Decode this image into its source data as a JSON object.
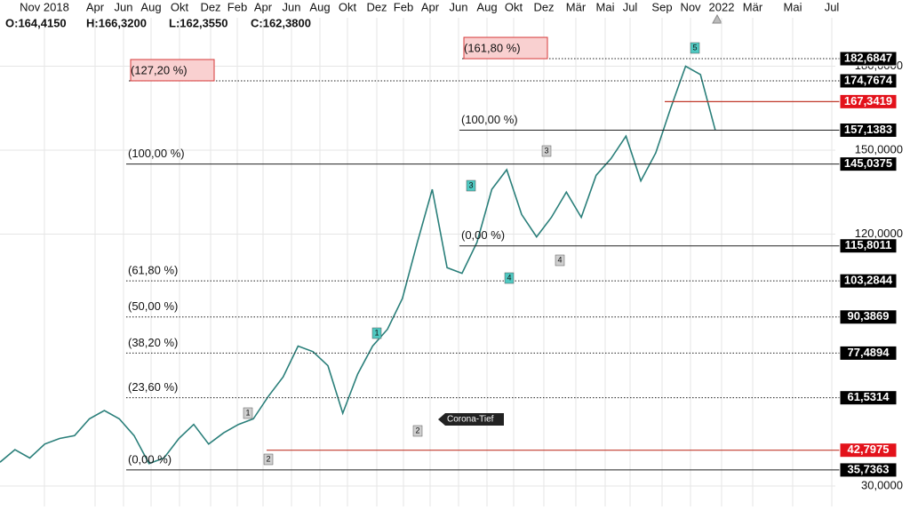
{
  "header": {
    "ohlc": [
      "O:164,4150",
      "H:166,3200",
      "L:162,3550",
      "C:162,3800"
    ]
  },
  "chart_data": {
    "type": "line",
    "x_labels": [
      "Nov 2018",
      "Apr",
      "Jun",
      "Aug",
      "Okt",
      "Dez",
      "Feb",
      "Apr",
      "Jun",
      "Aug",
      "Okt",
      "Dez",
      "Feb",
      "Apr",
      "Jun",
      "Aug",
      "Okt",
      "Dez",
      "Mär",
      "Mai",
      "Jul",
      "Sep",
      "Nov",
      "2022",
      "Mär",
      "Mai",
      "Jul"
    ],
    "series": [
      {
        "color": "#2a7f7a",
        "values": [
          38.5,
          43,
          40,
          45,
          47,
          48,
          54,
          57,
          54,
          48,
          38,
          40,
          47,
          52,
          45,
          49,
          52,
          54,
          62,
          69,
          80,
          78,
          73,
          56,
          70,
          80,
          86,
          97,
          117,
          136,
          108,
          106,
          117,
          136,
          143,
          127,
          119,
          126,
          135,
          126,
          141,
          147,
          155,
          139,
          149,
          165,
          180,
          177,
          157
        ]
      }
    ],
    "ylim": [
      22.7,
      197.3
    ],
    "yticks": [
      {
        "value": 180,
        "label": "180,0000"
      },
      {
        "value": 150,
        "label": "150,0000"
      },
      {
        "value": 120,
        "label": "120,0000"
      },
      {
        "value": 30,
        "label": "30,0000"
      }
    ],
    "grid": true,
    "levels": [
      {
        "value": 182.6847,
        "label": "182,6847",
        "fib": "(161,80 %)",
        "style": "dotted",
        "highlight": true
      },
      {
        "value": 174.7674,
        "label": "174,7674",
        "fib": "(127,20 %)",
        "style": "dotted",
        "highlight": true
      },
      {
        "value": 167.3419,
        "label": "167,3419",
        "style": "red"
      },
      {
        "value": 157.1383,
        "label": "157,1383",
        "fib": "(100,00 %)",
        "style": "solid"
      },
      {
        "value": 145.0375,
        "label": "145,0375",
        "fib": "(100,00 %)",
        "style": "solid"
      },
      {
        "value": 115.8011,
        "label": "115,8011",
        "fib": "(0,00 %)",
        "style": "solid"
      },
      {
        "value": 103.2844,
        "label": "103,2844",
        "fib": "(61,80 %)",
        "style": "dotted"
      },
      {
        "value": 90.3869,
        "label": "90,3869",
        "fib": "(50,00 %)",
        "style": "dotted"
      },
      {
        "value": 77.4894,
        "label": "77,4894",
        "fib": "(38,20 %)",
        "style": "dotted"
      },
      {
        "value": 61.5314,
        "label": "61,5314",
        "fib": "(23,60 %)",
        "style": "dotted"
      },
      {
        "value": 42.7975,
        "label": "42,7975",
        "style": "red"
      },
      {
        "value": 35.7363,
        "label": "35,7363",
        "fib": "(0,00 %)",
        "style": "solid"
      }
    ],
    "waves": [
      "1",
      "2",
      "1",
      "2",
      "3",
      "3",
      "4",
      "4",
      "5"
    ],
    "annotation": "Corona-Tief"
  }
}
